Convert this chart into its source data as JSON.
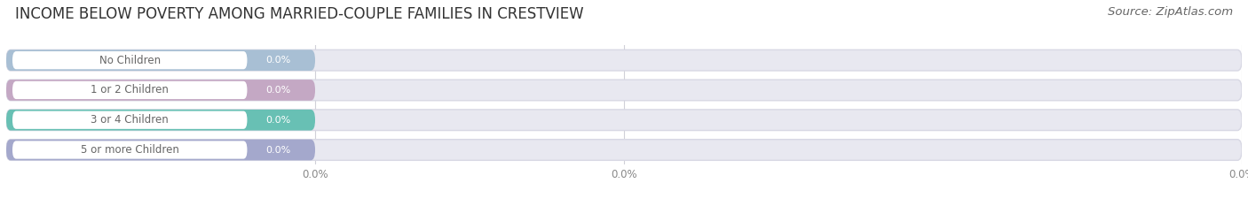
{
  "title": "INCOME BELOW POVERTY AMONG MARRIED-COUPLE FAMILIES IN CRESTVIEW",
  "source": "Source: ZipAtlas.com",
  "categories": [
    "No Children",
    "1 or 2 Children",
    "3 or 4 Children",
    "5 or more Children"
  ],
  "values": [
    0.0,
    0.0,
    0.0,
    0.0
  ],
  "bar_colors": [
    "#a8bfd4",
    "#c4a8c4",
    "#68c0b4",
    "#a4a8cc"
  ],
  "background_color": "#ffffff",
  "bar_bg_color": "#e8e8f0",
  "bar_bg_edge_color": "#d8d8e4",
  "title_fontsize": 12,
  "source_fontsize": 9.5,
  "cat_fontsize": 8.5,
  "val_fontsize": 8.0,
  "tick_fontsize": 8.5,
  "grid_color": "#d0d0d8",
  "text_color": "#666666",
  "tick_color": "#888888"
}
